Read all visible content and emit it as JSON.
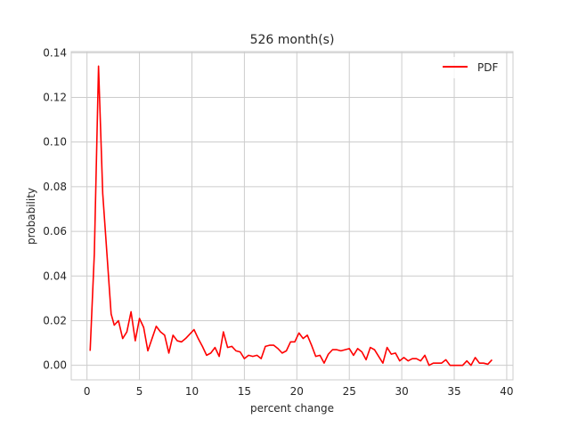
{
  "chart_data": {
    "type": "line",
    "title": "526 month(s)",
    "xlabel": "percent change",
    "ylabel": "probability",
    "xlim": [
      -1.5,
      40.6
    ],
    "ylim": [
      -0.0065,
      0.1405
    ],
    "xticks": [
      0,
      5,
      10,
      15,
      20,
      25,
      30,
      35,
      40
    ],
    "xtick_labels": [
      "0",
      "5",
      "10",
      "15",
      "20",
      "25",
      "30",
      "35",
      "40"
    ],
    "yticks": [
      0.0,
      0.02,
      0.04,
      0.06,
      0.08,
      0.1,
      0.12,
      0.14
    ],
    "ytick_labels": [
      "0.00",
      "0.02",
      "0.04",
      "0.06",
      "0.08",
      "0.10",
      "0.12",
      "0.14"
    ],
    "grid": true,
    "legend": {
      "position": "top-right",
      "entries": [
        "PDF"
      ]
    },
    "series": [
      {
        "name": "PDF",
        "color": "#ff0000",
        "x": [
          0.3,
          0.7,
          1.1,
          1.5,
          1.9,
          2.3,
          2.6,
          3.0,
          3.4,
          3.8,
          4.2,
          4.6,
          5.0,
          5.4,
          5.8,
          6.2,
          6.6,
          7.0,
          7.4,
          7.8,
          8.2,
          8.6,
          9.0,
          9.4,
          9.8,
          10.2,
          10.6,
          11.0,
          11.4,
          11.8,
          12.2,
          12.6,
          13.0,
          13.4,
          13.8,
          14.2,
          14.6,
          15.0,
          15.4,
          15.8,
          16.2,
          16.6,
          17.0,
          17.4,
          17.8,
          18.2,
          18.6,
          19.0,
          19.4,
          19.8,
          20.2,
          20.6,
          21.0,
          21.4,
          21.8,
          22.2,
          22.6,
          23.0,
          23.4,
          23.8,
          24.2,
          24.6,
          25.0,
          25.4,
          25.8,
          26.2,
          26.6,
          27.0,
          27.4,
          27.8,
          28.2,
          28.6,
          29.0,
          29.4,
          29.8,
          30.2,
          30.6,
          31.0,
          31.4,
          31.8,
          32.2,
          32.6,
          33.0,
          33.4,
          33.8,
          34.2,
          34.6,
          35.0,
          35.4,
          35.8,
          36.2,
          36.6,
          37.0,
          37.4,
          37.8,
          38.2,
          38.6
        ],
        "y": [
          0.0065,
          0.05,
          0.134,
          0.077,
          0.05,
          0.023,
          0.018,
          0.02,
          0.012,
          0.015,
          0.024,
          0.011,
          0.021,
          0.017,
          0.0065,
          0.012,
          0.0175,
          0.015,
          0.0135,
          0.0055,
          0.0135,
          0.011,
          0.0105,
          0.012,
          0.014,
          0.016,
          0.012,
          0.0085,
          0.0045,
          0.0055,
          0.008,
          0.004,
          0.015,
          0.008,
          0.0085,
          0.0065,
          0.006,
          0.003,
          0.0045,
          0.004,
          0.0045,
          0.003,
          0.0085,
          0.009,
          0.009,
          0.0075,
          0.0055,
          0.0065,
          0.0105,
          0.0105,
          0.0145,
          0.012,
          0.0135,
          0.009,
          0.004,
          0.0045,
          0.001,
          0.005,
          0.007,
          0.007,
          0.0065,
          0.007,
          0.0075,
          0.0045,
          0.0075,
          0.006,
          0.0025,
          0.008,
          0.007,
          0.004,
          0.001,
          0.008,
          0.005,
          0.0055,
          0.002,
          0.0035,
          0.002,
          0.003,
          0.003,
          0.002,
          0.0045,
          0.0,
          0.001,
          0.001,
          0.001,
          0.0025,
          0.0,
          0.0,
          0.0,
          0.0,
          0.002,
          0.0,
          0.0035,
          0.001,
          0.001,
          0.0005,
          0.0025
        ]
      }
    ]
  }
}
